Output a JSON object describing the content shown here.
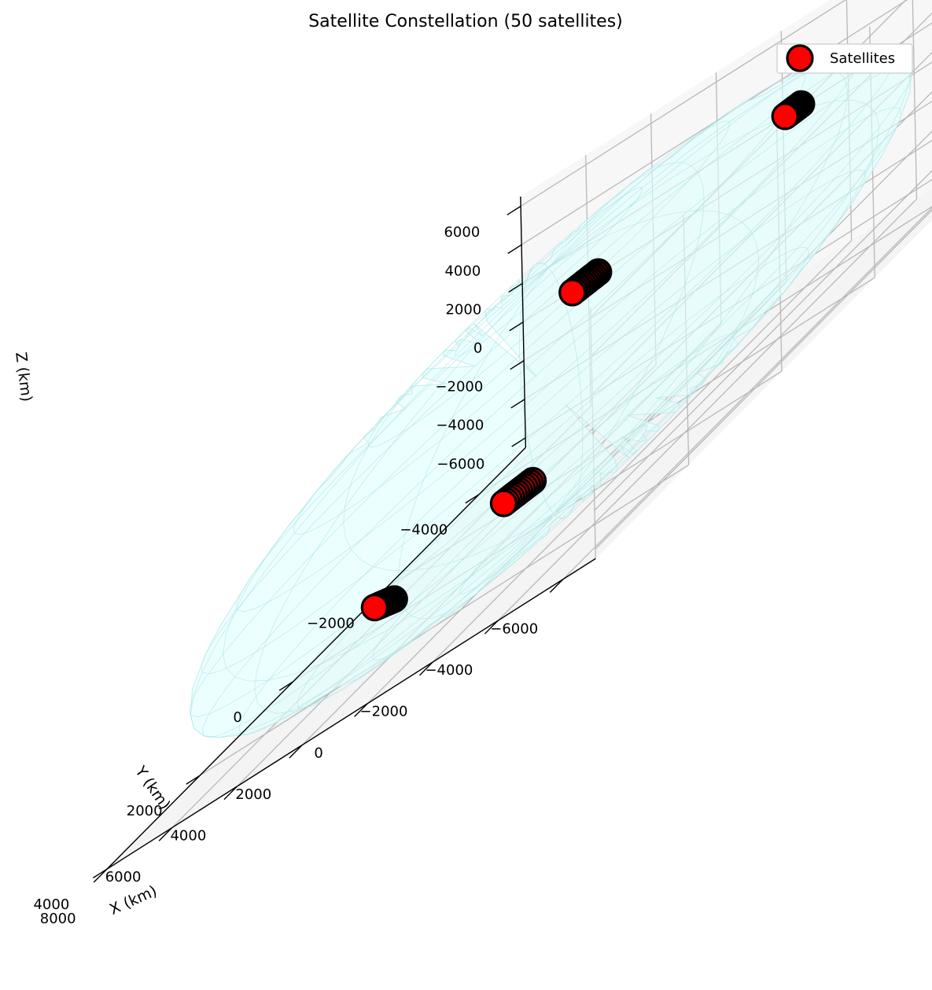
{
  "chart_data": {
    "type": "scatter",
    "projection": "3d",
    "title": "Satellite Constellation (50 satellites)",
    "xlabel": "X (km)",
    "ylabel": "Y (km)",
    "zlabel": "Z (km)",
    "xlim": [
      -7000,
      8000
    ],
    "ylim": [
      -5000,
      4000
    ],
    "zlim": [
      -6500,
      6500
    ],
    "x_ticks": [
      "−6000",
      "−4000",
      "−2000",
      "0",
      "2000",
      "4000",
      "6000",
      "8000"
    ],
    "y_ticks": [
      "−4000",
      "−2000",
      "0",
      "2000",
      "4000"
    ],
    "z_ticks": [
      "6000",
      "4000",
      "2000",
      "0",
      "−2000",
      "−4000",
      "−6000"
    ],
    "grid": true,
    "legend": {
      "position": "top-right",
      "entries": [
        "Satellites"
      ]
    },
    "earth_color": "#e0ffff",
    "marker_color": "#ff0000",
    "marker_edge": "#000000",
    "series": [
      {
        "name": "Satellites",
        "clusters": [
          {
            "count": 12,
            "x": [
              -5600,
              -5100
            ],
            "y": [
              -1500,
              -1500
            ],
            "z": [
              5200,
              5100
            ]
          },
          {
            "count": 13,
            "x": [
              3100,
              3900
            ],
            "y": [
              -3200,
              -3200
            ],
            "z": [
              1700,
              1500
            ]
          },
          {
            "count": 13,
            "x": [
              5600,
              6200
            ],
            "y": [
              -500,
              -500
            ],
            "z": [
              -6000,
              -5800
            ]
          },
          {
            "count": 12,
            "x": [
              -400,
              500
            ],
            "y": [
              700,
              700
            ],
            "z": [
              -3400,
              -3600
            ]
          }
        ]
      }
    ]
  }
}
